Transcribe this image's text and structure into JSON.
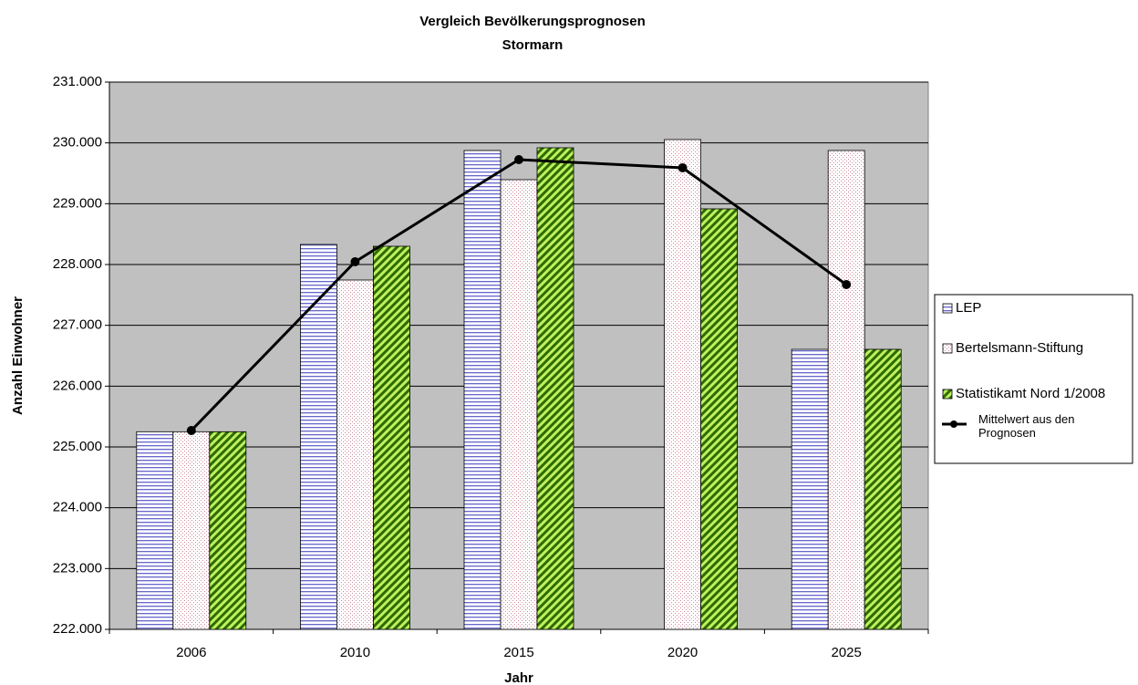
{
  "chart_data": {
    "type": "bar",
    "title": "Vergleich Bevölkerungsprognosen",
    "subtitle": "Stormarn",
    "x_label": "Jahr",
    "y_label": "Anzahl Einwohner",
    "categories": [
      "2006",
      "2010",
      "2015",
      "2020",
      "2025"
    ],
    "series": [
      {
        "name": "LEP",
        "color": "#6666cc",
        "values": [
          225250,
          228330,
          229875,
          null,
          226605
        ]
      },
      {
        "name": "Bertelsmann-Stiftung",
        "color": "#cc8899",
        "values": [
          225250,
          227745,
          229395,
          230055,
          229875
        ]
      },
      {
        "name": "Statistikamt Nord 1/2008",
        "color": "#2e6b00",
        "values": [
          225250,
          228300,
          229920,
          228915,
          226605
        ]
      },
      {
        "name": "Mittelwert aus den Prognosen",
        "type": "line",
        "color": "#000000",
        "values": [
          225270,
          228045,
          229725,
          229590,
          227670
        ]
      }
    ],
    "ylim": [
      222000,
      231000
    ],
    "yticks": [
      {
        "value": 222000,
        "label": "222.000"
      },
      {
        "value": 223000,
        "label": "223.000"
      },
      {
        "value": 224000,
        "label": "224.000"
      },
      {
        "value": 225000,
        "label": "225.000"
      },
      {
        "value": 226000,
        "label": "226.000"
      },
      {
        "value": 227000,
        "label": "227.000"
      },
      {
        "value": 228000,
        "label": "228.000"
      },
      {
        "value": 229000,
        "label": "229.000"
      },
      {
        "value": 230000,
        "label": "230.000"
      },
      {
        "value": 231000,
        "label": "231.000"
      }
    ],
    "grid": true,
    "legend": "right"
  }
}
